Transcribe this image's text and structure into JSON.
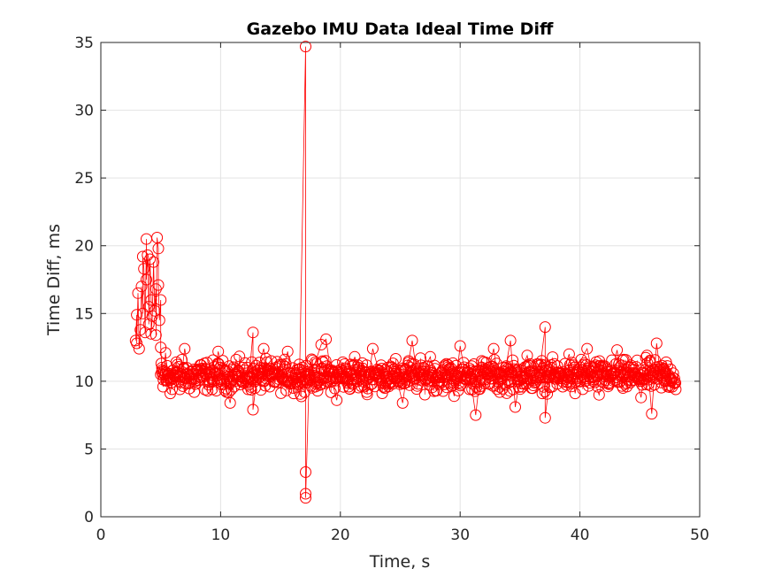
{
  "chart_data": {
    "type": "scatter",
    "title": "Gazebo IMU Data Ideal Time Diff",
    "xlabel": "Time, s",
    "ylabel": "Time Diff, ms",
    "xlim": [
      0,
      50
    ],
    "ylim": [
      0,
      35
    ],
    "xticks": [
      "0",
      "10",
      "20",
      "30",
      "40",
      "50"
    ],
    "yticks": [
      "0",
      "5",
      "10",
      "15",
      "20",
      "25",
      "30",
      "35"
    ],
    "grid": true,
    "marker": "circle",
    "line_connected": true,
    "series_color": "#ff0000",
    "series": [
      {
        "name": "",
        "points": [
          [
            2.9,
            13.0
          ],
          [
            3.0,
            14.9
          ],
          [
            3.0,
            12.8
          ],
          [
            3.1,
            16.5
          ],
          [
            3.2,
            12.4
          ],
          [
            3.3,
            13.8
          ],
          [
            3.4,
            17.0
          ],
          [
            3.5,
            15.0
          ],
          [
            3.5,
            19.2
          ],
          [
            3.6,
            18.3
          ],
          [
            3.7,
            13.6
          ],
          [
            3.8,
            20.5
          ],
          [
            3.8,
            17.5
          ],
          [
            3.9,
            19.3
          ],
          [
            4.0,
            15.5
          ],
          [
            4.0,
            14.2
          ],
          [
            4.1,
            19.0
          ],
          [
            4.2,
            16.0
          ],
          [
            4.2,
            13.5
          ],
          [
            4.3,
            14.8
          ],
          [
            4.4,
            18.8
          ],
          [
            4.5,
            15.2
          ],
          [
            4.6,
            16.8
          ],
          [
            4.6,
            13.4
          ],
          [
            4.7,
            20.6
          ],
          [
            4.8,
            19.8
          ],
          [
            4.8,
            17.1
          ],
          [
            4.9,
            14.5
          ],
          [
            5.0,
            16.0
          ],
          [
            5.0,
            12.5
          ],
          [
            5.1,
            11.0
          ],
          [
            5.2,
            9.6
          ],
          [
            5.4,
            12.1
          ],
          [
            5.6,
            10.2
          ],
          [
            5.8,
            9.1
          ],
          [
            6.0,
            10.8
          ],
          [
            6.3,
            11.4
          ],
          [
            6.6,
            9.4
          ],
          [
            7.0,
            12.4
          ],
          [
            7.4,
            10.4
          ],
          [
            7.8,
            9.2
          ],
          [
            8.3,
            11.2
          ],
          [
            8.8,
            10.6
          ],
          [
            9.3,
            9.4
          ],
          [
            9.8,
            12.2
          ],
          [
            10.3,
            10.0
          ],
          [
            10.8,
            8.4
          ],
          [
            11.3,
            11.6
          ],
          [
            11.8,
            10.3
          ],
          [
            12.3,
            9.4
          ],
          [
            12.7,
            13.6
          ],
          [
            12.7,
            7.9
          ],
          [
            13.1,
            10.8
          ],
          [
            13.6,
            12.4
          ],
          [
            14.1,
            9.6
          ],
          [
            14.6,
            11.0
          ],
          [
            15.1,
            10.3
          ],
          [
            15.6,
            12.2
          ],
          [
            16.1,
            9.1
          ],
          [
            16.6,
            10.9
          ],
          [
            17.1,
            34.7
          ],
          [
            17.1,
            3.3
          ],
          [
            17.1,
            1.7
          ],
          [
            17.1,
            1.4
          ],
          [
            17.4,
            10.5
          ],
          [
            17.9,
            11.4
          ],
          [
            18.4,
            12.7
          ],
          [
            18.8,
            13.1
          ],
          [
            19.3,
            10.0
          ],
          [
            19.7,
            8.6
          ],
          [
            20.2,
            11.4
          ],
          [
            20.7,
            9.6
          ],
          [
            21.2,
            11.8
          ],
          [
            21.7,
            10.4
          ],
          [
            22.2,
            9.2
          ],
          [
            22.7,
            12.4
          ],
          [
            23.2,
            10.8
          ],
          [
            23.7,
            9.5
          ],
          [
            24.2,
            11.1
          ],
          [
            24.7,
            10.2
          ],
          [
            25.2,
            8.4
          ],
          [
            25.7,
            11.5
          ],
          [
            26.0,
            13.0
          ],
          [
            26.5,
            9.8
          ],
          [
            27.0,
            10.9
          ],
          [
            27.5,
            11.8
          ],
          [
            28.0,
            9.3
          ],
          [
            28.5,
            10.4
          ],
          [
            29.0,
            11.2
          ],
          [
            29.5,
            8.9
          ],
          [
            30.0,
            12.6
          ],
          [
            30.5,
            10.1
          ],
          [
            31.0,
            9.4
          ],
          [
            31.3,
            7.5
          ],
          [
            31.8,
            11.5
          ],
          [
            32.3,
            10.6
          ],
          [
            32.8,
            12.4
          ],
          [
            33.3,
            9.2
          ],
          [
            33.8,
            11.0
          ],
          [
            34.2,
            13.0
          ],
          [
            34.6,
            8.1
          ],
          [
            35.1,
            10.8
          ],
          [
            35.6,
            11.9
          ],
          [
            36.1,
            9.7
          ],
          [
            36.6,
            10.5
          ],
          [
            37.1,
            14.0
          ],
          [
            37.1,
            7.3
          ],
          [
            37.6,
            11.2
          ],
          [
            38.1,
            9.8
          ],
          [
            38.6,
            10.7
          ],
          [
            39.1,
            12.0
          ],
          [
            39.6,
            9.1
          ],
          [
            40.1,
            11.6
          ],
          [
            40.6,
            12.4
          ],
          [
            41.1,
            10.3
          ],
          [
            41.6,
            9.0
          ],
          [
            42.1,
            11.1
          ],
          [
            42.6,
            10.4
          ],
          [
            43.1,
            12.3
          ],
          [
            43.6,
            9.5
          ],
          [
            44.1,
            11.0
          ],
          [
            44.6,
            10.6
          ],
          [
            45.1,
            8.8
          ],
          [
            45.6,
            11.9
          ],
          [
            46.0,
            7.6
          ],
          [
            46.4,
            12.8
          ],
          [
            46.8,
            9.9
          ],
          [
            47.2,
            11.4
          ],
          [
            47.6,
            10.2
          ],
          [
            48.0,
            9.4
          ]
        ]
      }
    ],
    "noise_band": {
      "y_center": 10.4,
      "y_min": 8.8,
      "y_max": 12.0,
      "x_start": 5.0,
      "x_end": 48.0
    }
  }
}
